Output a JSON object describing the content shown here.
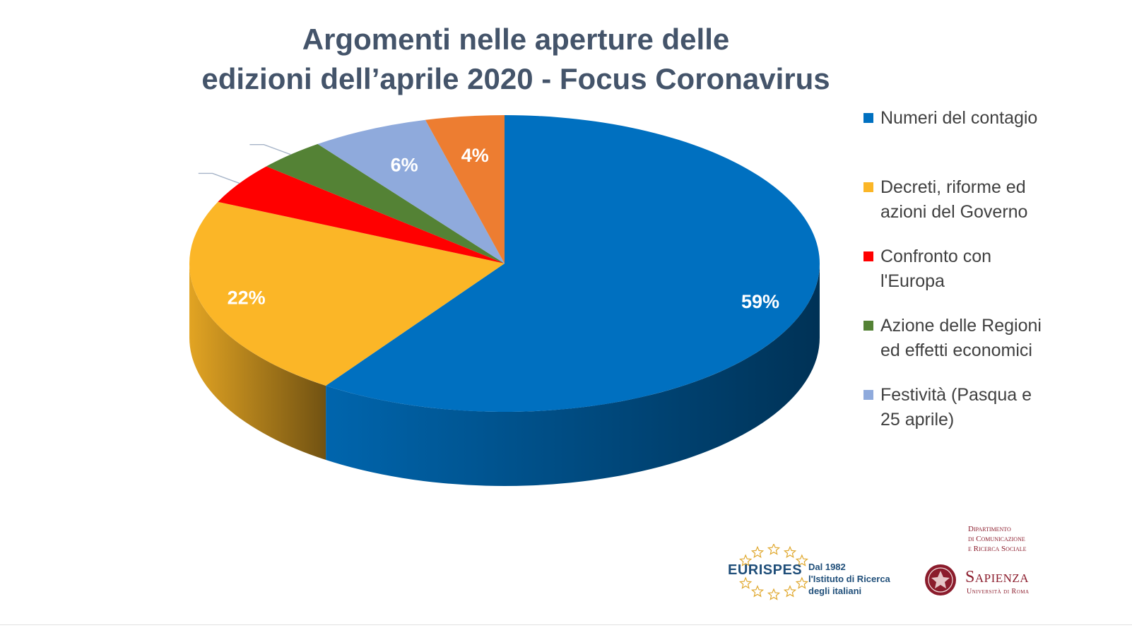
{
  "chart_data": {
    "type": "pie",
    "title": {
      "line1": "Argomenti nelle aperture delle",
      "line2": "edizioni dell’aprile 2020 - Focus Coronavirus"
    },
    "three_d": true,
    "legend_position": "right",
    "series": [
      {
        "name": "Argomenti",
        "slices": [
          {
            "label": "Numeri del contagio",
            "label_lines": [
              "Numeri del contagio"
            ],
            "value": 59,
            "data_label": "59%",
            "color": "#0070c0"
          },
          {
            "label": "Decreti, riforme ed azioni del Governo",
            "label_lines": [
              "Decreti, riforme ed",
              "azioni del Governo"
            ],
            "value": 22,
            "data_label": "22%",
            "color": "#fbb627"
          },
          {
            "label": "Confronto con l'Europa",
            "label_lines": [
              "Confronto con",
              "l'Europa"
            ],
            "value": 4.5,
            "data_label": "",
            "color": "#ff0000"
          },
          {
            "label": "Azione delle Regioni ed effetti economici",
            "label_lines": [
              "Azione delle Regioni",
              "ed effetti economici"
            ],
            "value": 3.5,
            "data_label": "",
            "color": "#548235"
          },
          {
            "label": "Festività (Pasqua e 25 aprile)",
            "label_lines": [
              "Festività (Pasqua e",
              "25 aprile)"
            ],
            "value": 6,
            "data_label": "6%",
            "color": "#8faadc"
          },
          {
            "label": "",
            "label_lines": [],
            "value": 4,
            "data_label": "4%",
            "color": "#ed7d31"
          }
        ]
      }
    ]
  },
  "logos": {
    "eurispes": {
      "brand": "EURISPES",
      "tagline_lines": [
        "Dal 1982",
        "l'Istituto di Ricerca",
        "degli italiani"
      ],
      "star_color": "#e0a82e"
    },
    "sapienza": {
      "dept_lines": [
        "Dipartimento",
        "di Comunicazione",
        "e Ricerca Sociale"
      ],
      "name": "Sapienza",
      "university": "Università di Roma",
      "color": "#8b1c2c"
    }
  }
}
